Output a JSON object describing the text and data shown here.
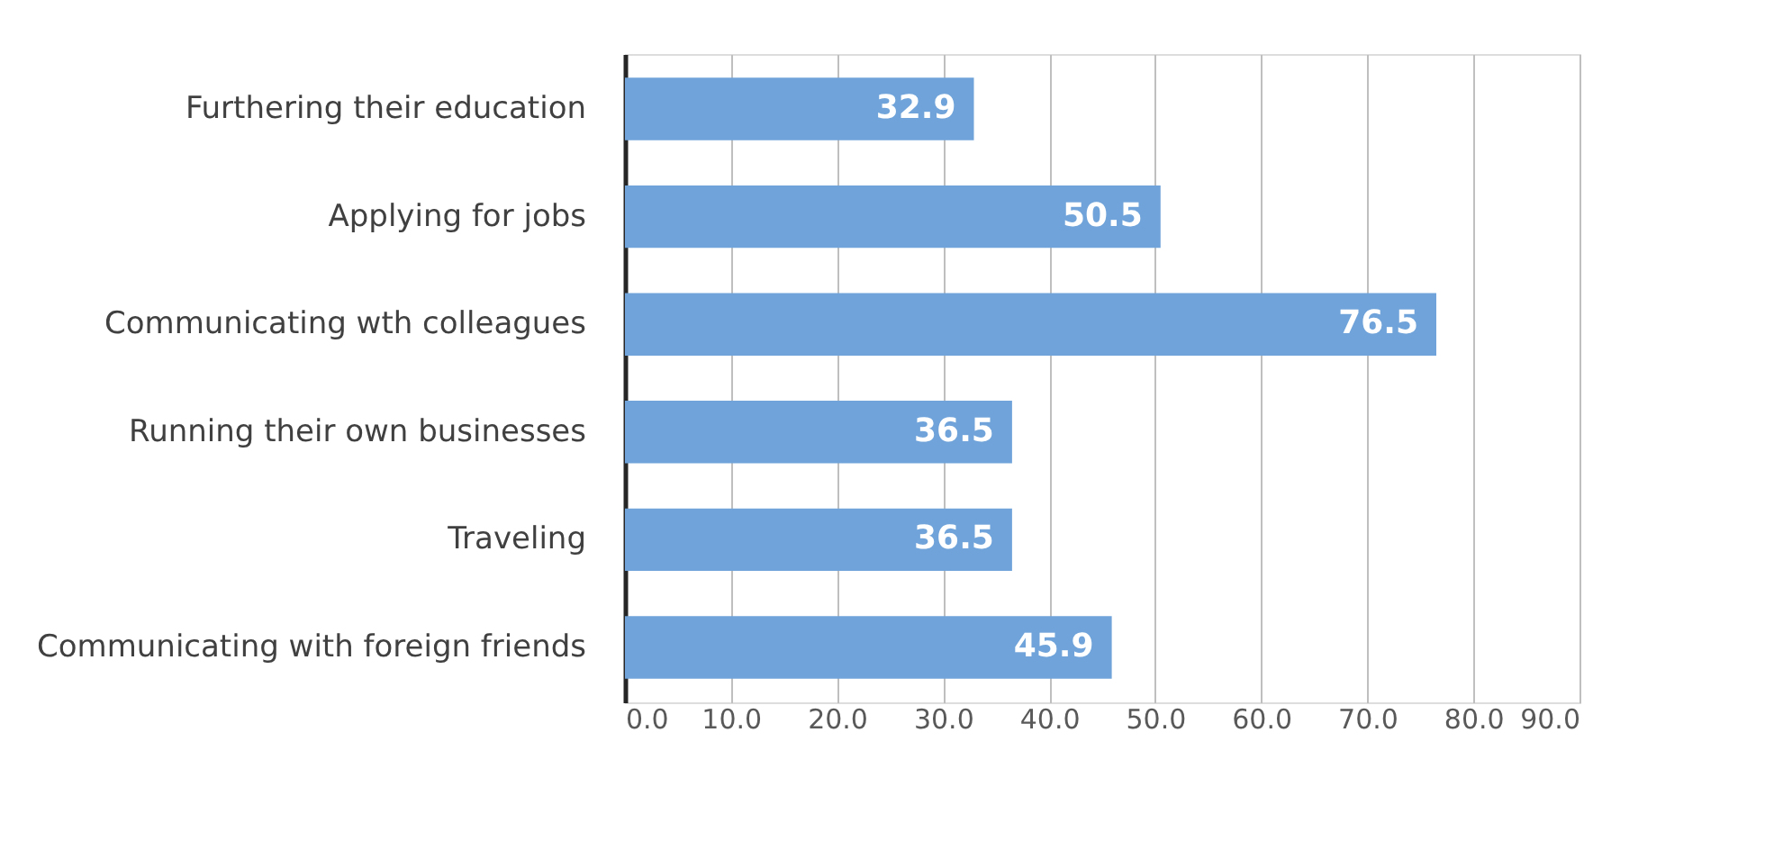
{
  "chart_data": {
    "type": "bar",
    "orientation": "horizontal",
    "categories": [
      "Furthering their education",
      "Applying for jobs",
      "Communicating wth colleagues",
      "Running their own businesses",
      "Traveling",
      "Communicating with foreign friends"
    ],
    "values": [
      32.9,
      50.5,
      76.5,
      36.5,
      36.5,
      45.9
    ],
    "color": "#6fa3d9",
    "xlim": [
      0,
      90
    ],
    "xticks": [
      {
        "value": 0,
        "label": "0.0"
      },
      {
        "value": 10,
        "label": "10.0"
      },
      {
        "value": 20,
        "label": "20.0"
      },
      {
        "value": 30,
        "label": "30.0"
      },
      {
        "value": 40,
        "label": "40.0"
      },
      {
        "value": 50,
        "label": "50.0"
      },
      {
        "value": 60,
        "label": "60.0"
      },
      {
        "value": 70,
        "label": "70.0"
      },
      {
        "value": 80,
        "label": "80.0"
      },
      {
        "value": 90,
        "label": "90.0"
      }
    ],
    "grid": "x",
    "data_labels": true
  }
}
